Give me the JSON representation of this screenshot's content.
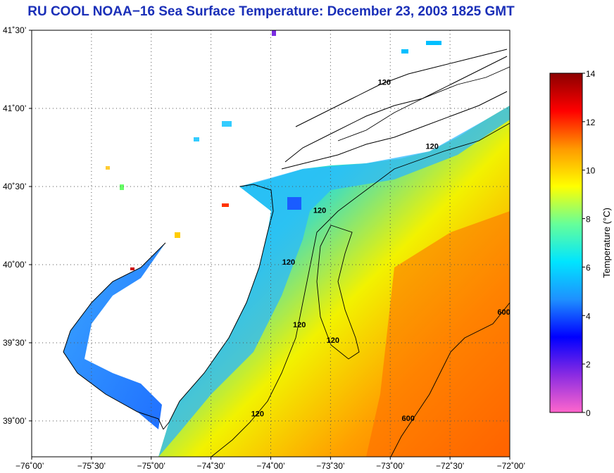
{
  "title": "RU COOL  NOAA−16  Sea Surface Temperature:  December 23, 2003 1825 GMT",
  "lat_ticks": [
    {
      "value": 41.5,
      "label": "41˚30’"
    },
    {
      "value": 41.0,
      "label": "41˚00’"
    },
    {
      "value": 40.5,
      "label": "40˚30’"
    },
    {
      "value": 40.0,
      "label": "40˚00’"
    },
    {
      "value": 39.5,
      "label": "39˚30’"
    },
    {
      "value": 39.0,
      "label": "39˚00’"
    }
  ],
  "lon_ticks": [
    {
      "value": -76.0,
      "label": "−76˚00’"
    },
    {
      "value": -75.5,
      "label": "−75˚30’"
    },
    {
      "value": -75.0,
      "label": "−75˚00’"
    },
    {
      "value": -74.5,
      "label": "−74˚30’"
    },
    {
      "value": -74.0,
      "label": "−74˚00’"
    },
    {
      "value": -73.5,
      "label": "−73˚30’"
    },
    {
      "value": -73.0,
      "label": "−73˚00’"
    },
    {
      "value": -72.5,
      "label": "−72˚30’"
    },
    {
      "value": -72.0,
      "label": "−72˚00’"
    }
  ],
  "colorbar": {
    "title": "Temperature (°C)",
    "min": 0,
    "max": 14,
    "ticks": [
      "0",
      "2",
      "4",
      "6",
      "8",
      "10",
      "12",
      "14"
    ],
    "stops": [
      "#ff66cc",
      "#8a2be2",
      "#0000ff",
      "#1e90ff",
      "#00e5ff",
      "#66ff99",
      "#ffff00",
      "#ff9900",
      "#ff0000",
      "#8b0000"
    ]
  },
  "contour_labels": [
    {
      "text": "120",
      "lon": -73.05,
      "lat": 41.15
    },
    {
      "text": "120",
      "lon": -72.65,
      "lat": 40.74
    },
    {
      "text": "120",
      "lon": -73.59,
      "lat": 40.33
    },
    {
      "text": "120",
      "lon": -73.85,
      "lat": 40.0
    },
    {
      "text": "120",
      "lon": -73.76,
      "lat": 39.6
    },
    {
      "text": "120",
      "lon": -73.48,
      "lat": 39.5
    },
    {
      "text": "120",
      "lon": -74.11,
      "lat": 39.03
    },
    {
      "text": "600",
      "lon": -72.05,
      "lat": 39.68
    },
    {
      "text": "600",
      "lon": -72.85,
      "lat": 39.0
    }
  ]
}
